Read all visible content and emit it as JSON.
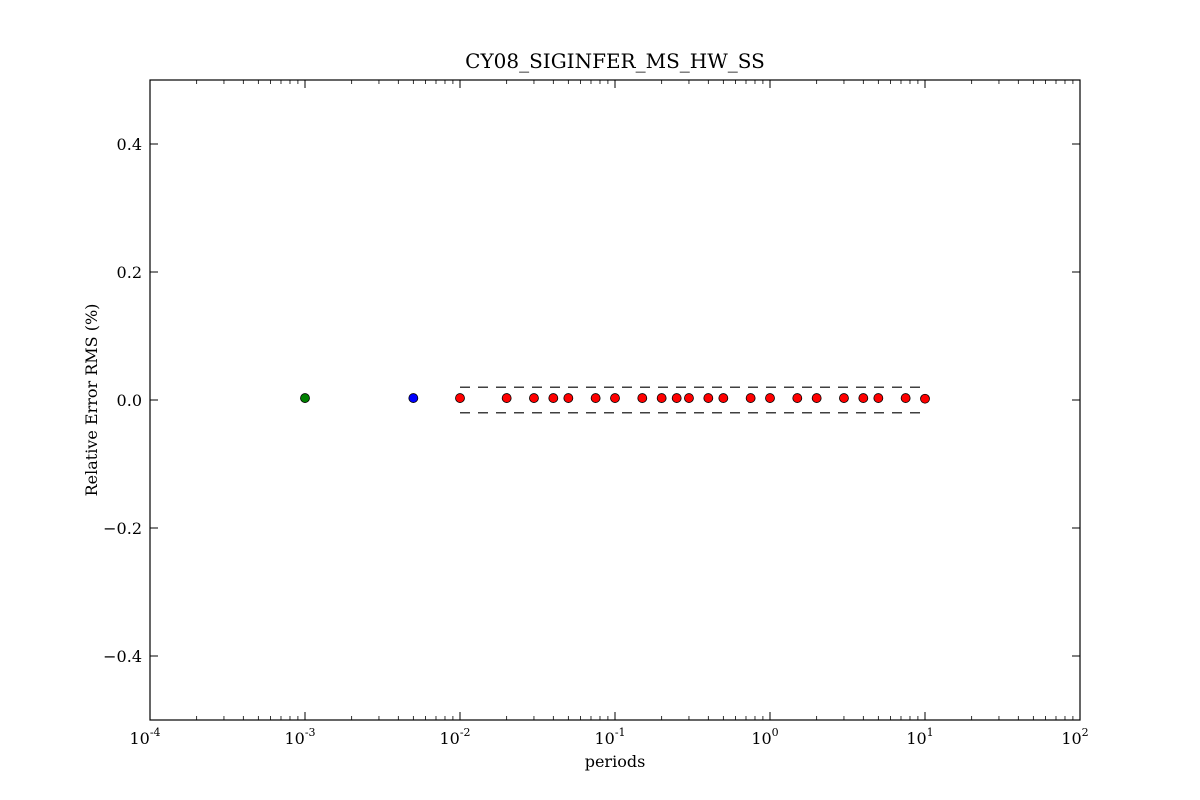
{
  "chart_data": {
    "type": "scatter",
    "title": "CY08_SIGINFER_MS_HW_SS",
    "xlabel": "periods",
    "ylabel": "Relative Error RMS (%)",
    "x_scale": "log",
    "xlim": [
      0.0001,
      100
    ],
    "ylim": [
      -0.5,
      0.5
    ],
    "x_ticks": [
      {
        "base": "10",
        "exp": "-4",
        "value": 0.0001
      },
      {
        "base": "10",
        "exp": "-3",
        "value": 0.001
      },
      {
        "base": "10",
        "exp": "-2",
        "value": 0.01
      },
      {
        "base": "10",
        "exp": "-1",
        "value": 0.1
      },
      {
        "base": "10",
        "exp": "0",
        "value": 1
      },
      {
        "base": "10",
        "exp": "1",
        "value": 10
      },
      {
        "base": "10",
        "exp": "2",
        "value": 100
      }
    ],
    "y_ticks": [
      {
        "label": "0.4",
        "value": 0.4
      },
      {
        "label": "0.2",
        "value": 0.2
      },
      {
        "label": "0.0",
        "value": 0.0
      },
      {
        "label": "−0.2",
        "value": -0.2
      },
      {
        "label": "−0.4",
        "value": -0.4
      }
    ],
    "grid": false,
    "series": [
      {
        "color": "#008000",
        "points": [
          {
            "x": 0.001,
            "y": 0.003
          }
        ]
      },
      {
        "color": "#0000ff",
        "points": [
          {
            "x": 0.005,
            "y": 0.003
          }
        ]
      },
      {
        "color": "#ff0000",
        "points": [
          {
            "x": 0.01,
            "y": 0.003
          },
          {
            "x": 0.02,
            "y": 0.003
          },
          {
            "x": 0.03,
            "y": 0.003
          },
          {
            "x": 0.04,
            "y": 0.003
          },
          {
            "x": 0.05,
            "y": 0.003
          },
          {
            "x": 0.075,
            "y": 0.003
          },
          {
            "x": 0.1,
            "y": 0.003
          },
          {
            "x": 0.15,
            "y": 0.003
          },
          {
            "x": 0.2,
            "y": 0.003
          },
          {
            "x": 0.25,
            "y": 0.003
          },
          {
            "x": 0.3,
            "y": 0.003
          },
          {
            "x": 0.4,
            "y": 0.003
          },
          {
            "x": 0.5,
            "y": 0.003
          },
          {
            "x": 0.75,
            "y": 0.003
          },
          {
            "x": 1.0,
            "y": 0.003
          },
          {
            "x": 1.5,
            "y": 0.003
          },
          {
            "x": 2.0,
            "y": 0.003
          },
          {
            "x": 3.0,
            "y": 0.003
          },
          {
            "x": 4.0,
            "y": 0.003
          },
          {
            "x": 5.0,
            "y": 0.003
          },
          {
            "x": 7.5,
            "y": 0.003
          },
          {
            "x": 10.0,
            "y": 0.002
          }
        ]
      }
    ],
    "reference_lines": [
      {
        "y": 0.02,
        "x_from": 0.01,
        "x_to": 10,
        "style": "dashed",
        "color": "#000000"
      },
      {
        "y": -0.02,
        "x_from": 0.01,
        "x_to": 10,
        "style": "dashed",
        "color": "#000000"
      }
    ]
  }
}
